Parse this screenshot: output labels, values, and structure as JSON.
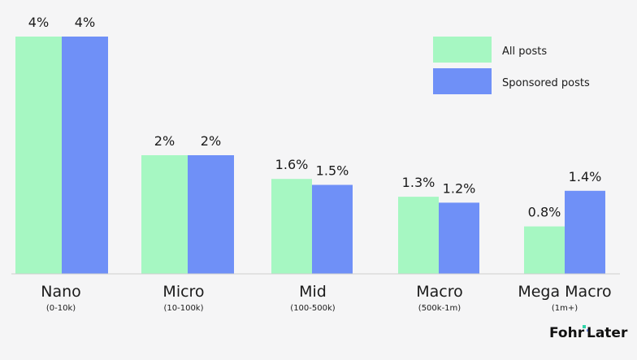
{
  "chart_data": {
    "type": "bar",
    "categories": [
      "Nano",
      "Micro",
      "Mid",
      "Macro",
      "Mega Macro"
    ],
    "category_sublabels": [
      "(0-10k)",
      "(10-100k)",
      "(100-500k)",
      "(500k-1m)",
      "(1m+)"
    ],
    "series": [
      {
        "name": "All posts",
        "color": "#a6f7c2",
        "values": [
          4,
          2,
          1.6,
          1.3,
          0.8
        ],
        "labels": [
          "4%",
          "2%",
          "1.6%",
          "1.3%",
          "0.8%"
        ]
      },
      {
        "name": "Sponsored posts",
        "color": "#6f90f7",
        "values": [
          4,
          2,
          1.5,
          1.2,
          1.4
        ],
        "labels": [
          "4%",
          "2%",
          "1.5%",
          "1.2%",
          "1.4%"
        ]
      }
    ],
    "ylim": [
      0,
      4
    ],
    "grid": false,
    "legend": "top-right",
    "title": "",
    "xlabel": "",
    "ylabel": ""
  },
  "brand": {
    "fohr": "Fohr",
    "later": "Later"
  }
}
